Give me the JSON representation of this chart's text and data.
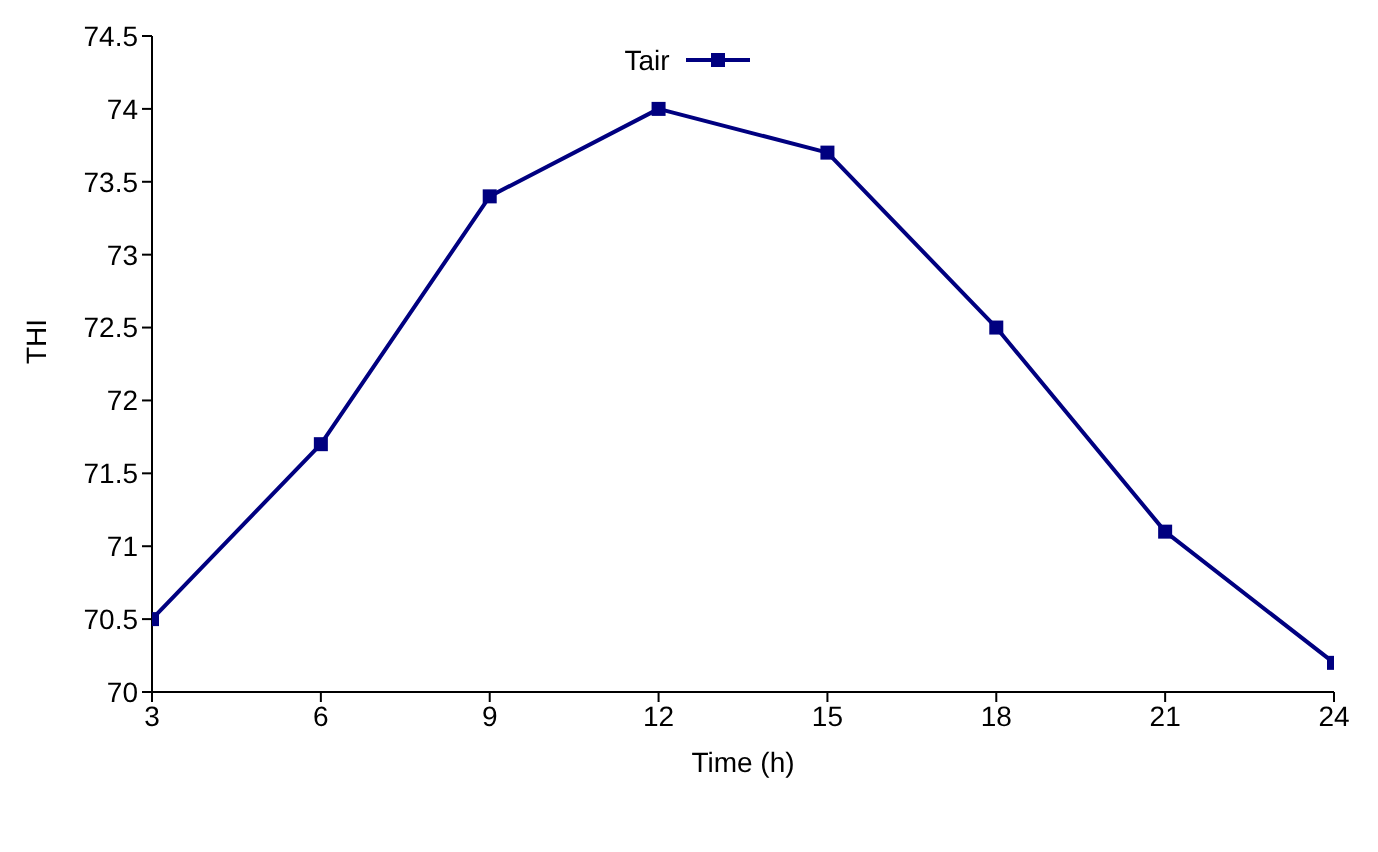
{
  "chart_data": {
    "type": "line",
    "xlabel": "Time (h)",
    "ylabel": "THI",
    "x": [
      3,
      6,
      9,
      12,
      15,
      18,
      21,
      24
    ],
    "series": [
      {
        "name": "Tair",
        "color": "#000080",
        "values": [
          70.5,
          71.7,
          73.4,
          74.0,
          73.7,
          72.5,
          71.1,
          70.2
        ]
      }
    ],
    "xlim": [
      3,
      24
    ],
    "xticks": [
      3,
      6,
      9,
      12,
      15,
      18,
      21,
      24
    ],
    "ylim": [
      70,
      74.5
    ],
    "yticks": [
      70,
      70.5,
      71,
      71.5,
      72,
      72.5,
      73,
      73.5,
      74,
      74.5
    ],
    "grid": false,
    "legend": "top",
    "marker": "square",
    "line_style": "solid"
  }
}
